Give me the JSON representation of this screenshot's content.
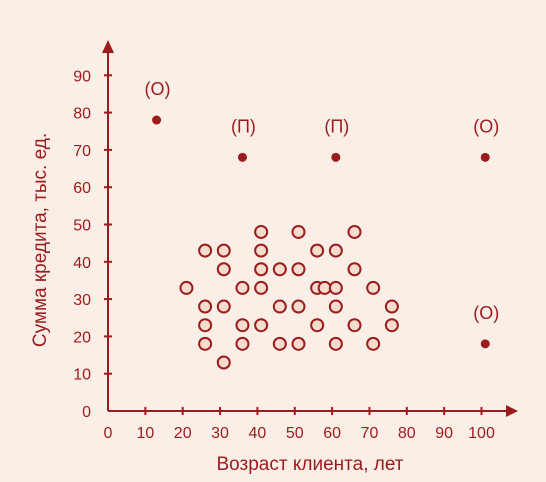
{
  "colors": {
    "background": "#fbeee6",
    "accent": "#9b1c1c",
    "regular_fill": "#f6dccf",
    "outlier_fill": "#9b1c1c"
  },
  "chart_data": {
    "type": "scatter",
    "title": "",
    "xlabel": "Возраст клиента, лет",
    "ylabel": "Сумма кредита, тыс. ед.",
    "xlim": [
      0,
      100
    ],
    "ylim": [
      0,
      90
    ],
    "xticks": [
      0,
      10,
      20,
      30,
      40,
      50,
      60,
      70,
      80,
      90,
      100
    ],
    "yticks": [
      0,
      10,
      20,
      30,
      40,
      50,
      60,
      70,
      80,
      90
    ],
    "grid": false,
    "legend": "none",
    "series": [
      {
        "marker": "hollow-circle",
        "points": [
          {
            "x": 21,
            "y": 33
          },
          {
            "x": 26,
            "y": 18
          },
          {
            "x": 26,
            "y": 23
          },
          {
            "x": 26,
            "y": 28
          },
          {
            "x": 26,
            "y": 43
          },
          {
            "x": 31,
            "y": 13
          },
          {
            "x": 31,
            "y": 28
          },
          {
            "x": 31,
            "y": 38
          },
          {
            "x": 31,
            "y": 43
          },
          {
            "x": 36,
            "y": 18
          },
          {
            "x": 36,
            "y": 23
          },
          {
            "x": 36,
            "y": 33
          },
          {
            "x": 41,
            "y": 23
          },
          {
            "x": 41,
            "y": 33
          },
          {
            "x": 41,
            "y": 38
          },
          {
            "x": 41,
            "y": 43
          },
          {
            "x": 41,
            "y": 48
          },
          {
            "x": 46,
            "y": 18
          },
          {
            "x": 46,
            "y": 28
          },
          {
            "x": 46,
            "y": 38
          },
          {
            "x": 51,
            "y": 18
          },
          {
            "x": 51,
            "y": 28
          },
          {
            "x": 51,
            "y": 38
          },
          {
            "x": 51,
            "y": 48
          },
          {
            "x": 56,
            "y": 23
          },
          {
            "x": 56,
            "y": 33
          },
          {
            "x": 56,
            "y": 43
          },
          {
            "x": 58,
            "y": 33
          },
          {
            "x": 61,
            "y": 18
          },
          {
            "x": 61,
            "y": 28
          },
          {
            "x": 61,
            "y": 33
          },
          {
            "x": 61,
            "y": 43
          },
          {
            "x": 66,
            "y": 23
          },
          {
            "x": 66,
            "y": 38
          },
          {
            "x": 66,
            "y": 48
          },
          {
            "x": 71,
            "y": 18
          },
          {
            "x": 71,
            "y": 33
          },
          {
            "x": 76,
            "y": 23
          },
          {
            "x": 76,
            "y": 28
          }
        ]
      },
      {
        "marker": "filled-circle",
        "points": [
          {
            "x": 13,
            "y": 78,
            "label": "(О)"
          },
          {
            "x": 36,
            "y": 68,
            "label": "(П)"
          },
          {
            "x": 61,
            "y": 68,
            "label": "(П)"
          },
          {
            "x": 101,
            "y": 68,
            "label": "(О)"
          },
          {
            "x": 101,
            "y": 18,
            "label": "(О)"
          }
        ]
      }
    ]
  }
}
